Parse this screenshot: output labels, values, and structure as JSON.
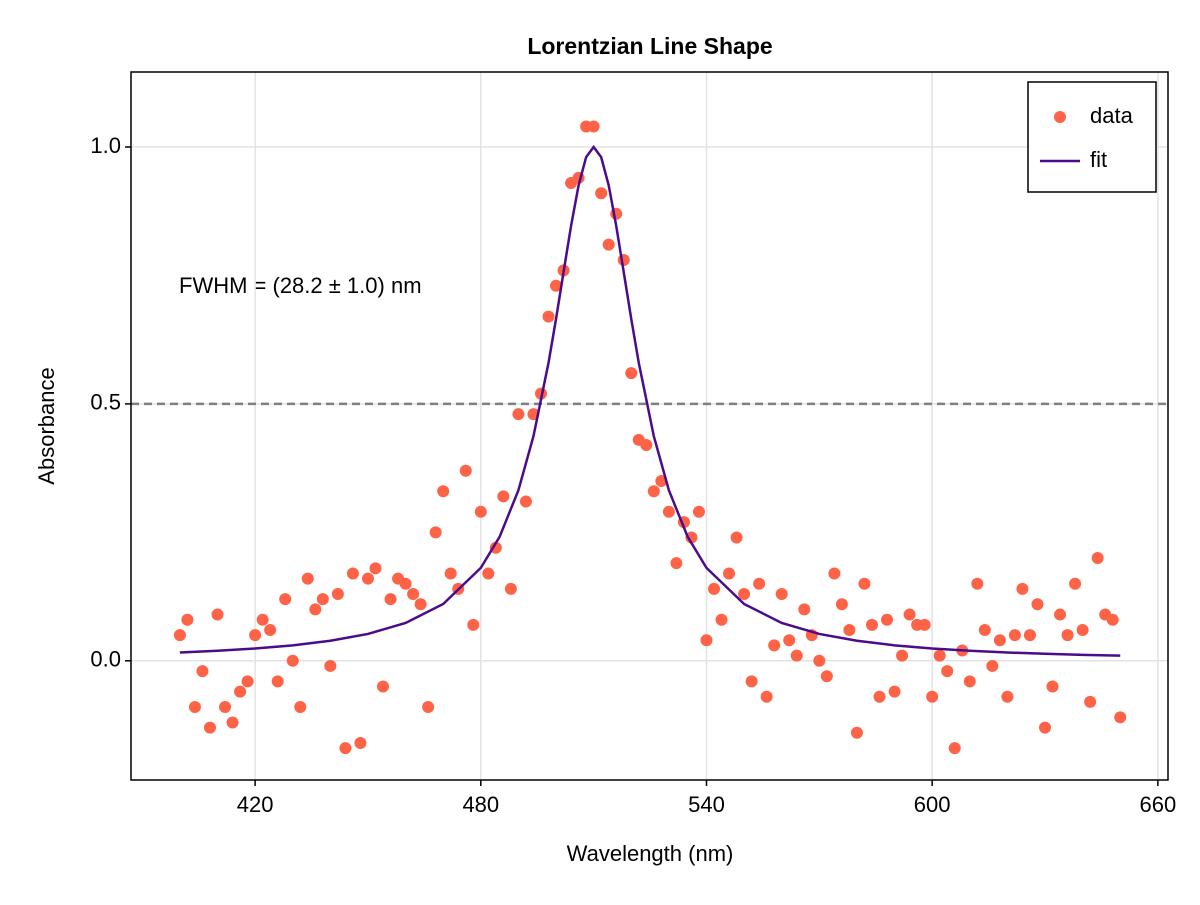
{
  "chart_data": {
    "type": "scatter",
    "title": "Lorentzian Line Shape",
    "x_label": "Wavelength (nm)",
    "y_label": "Absorbance",
    "annotation": "FWHM = (28.2 ± 1.0) nm",
    "hline": 0.5,
    "grid": true,
    "legend": "top-right",
    "xlim": [
      387,
      662.7
    ],
    "ylim": [
      -0.232,
      1.146
    ],
    "xticks": [
      420,
      480,
      540,
      600,
      660
    ],
    "yticks": [
      {
        "value": 0,
        "label": "0.0"
      },
      {
        "value": 0.5,
        "label": "0.5"
      },
      {
        "value": 1,
        "label": "1.0"
      }
    ],
    "series": [
      {
        "name": "data",
        "type": "scatter",
        "color": "#ff6347",
        "x": [
          400,
          402,
          404,
          406,
          408,
          410,
          412,
          414,
          416,
          418,
          420,
          422,
          424,
          426,
          428,
          430,
          432,
          434,
          436,
          438,
          440,
          442,
          444,
          446,
          448,
          450,
          452,
          454,
          456,
          458,
          460,
          462,
          464,
          466,
          468,
          470,
          472,
          474,
          476,
          478,
          480,
          482,
          484,
          486,
          488,
          490,
          492,
          494,
          496,
          498,
          500,
          502,
          504,
          506,
          508,
          510,
          512,
          514,
          516,
          518,
          520,
          522,
          524,
          526,
          528,
          530,
          532,
          534,
          536,
          538,
          540,
          542,
          544,
          546,
          548,
          550,
          552,
          554,
          556,
          558,
          560,
          562,
          564,
          566,
          568,
          570,
          572,
          574,
          576,
          578,
          580,
          582,
          584,
          586,
          588,
          590,
          592,
          594,
          596,
          598,
          600,
          602,
          604,
          606,
          608,
          610,
          612,
          614,
          616,
          618,
          620,
          622,
          624,
          626,
          628,
          630,
          632,
          634,
          636,
          638,
          640,
          642,
          644,
          646,
          648,
          650
        ],
        "values": [
          0.05,
          0.08,
          -0.09,
          -0.02,
          -0.13,
          0.09,
          -0.09,
          -0.12,
          -0.06,
          -0.04,
          0.05,
          0.08,
          0.06,
          -0.04,
          0.12,
          0.0,
          -0.09,
          0.16,
          0.1,
          0.12,
          -0.01,
          0.13,
          -0.17,
          0.17,
          -0.16,
          0.16,
          0.18,
          -0.05,
          0.12,
          0.16,
          0.15,
          0.13,
          0.11,
          -0.09,
          0.25,
          0.33,
          0.17,
          0.14,
          0.37,
          0.07,
          0.29,
          0.17,
          0.22,
          0.32,
          0.14,
          0.48,
          0.31,
          0.48,
          0.52,
          0.67,
          0.73,
          0.76,
          0.93,
          0.94,
          1.04,
          1.04,
          0.91,
          0.81,
          0.87,
          0.78,
          0.56,
          0.43,
          0.42,
          0.33,
          0.35,
          0.29,
          0.19,
          0.27,
          0.24,
          0.29,
          0.04,
          0.14,
          0.08,
          0.17,
          0.24,
          0.13,
          -0.04,
          0.15,
          -0.07,
          0.03,
          0.13,
          0.04,
          0.01,
          0.1,
          0.05,
          0.0,
          -0.03,
          0.17,
          0.11,
          0.06,
          -0.14,
          0.15,
          0.07,
          -0.07,
          0.08,
          -0.06,
          0.01,
          0.09,
          0.07,
          0.07,
          -0.07,
          0.01,
          -0.02,
          -0.17,
          0.02,
          -0.04,
          0.15,
          0.06,
          -0.01,
          0.04,
          -0.07,
          0.05,
          0.14,
          0.05,
          0.11,
          -0.13,
          -0.05,
          0.09,
          0.05,
          0.15,
          0.06,
          -0.08,
          0.2,
          0.09,
          0.08,
          -0.11
        ]
      },
      {
        "name": "fit",
        "type": "line",
        "color": "#4b0c8c",
        "x": [
          400,
          410,
          420,
          430,
          440,
          450,
          460,
          470,
          480,
          485,
          490,
          494,
          498,
          500,
          502,
          504,
          506,
          508,
          510,
          512,
          514,
          516,
          518,
          520,
          522,
          526,
          530,
          535,
          540,
          550,
          560,
          570,
          580,
          590,
          600,
          610,
          620,
          630,
          640,
          650
        ],
        "values": [
          0.0162,
          0.0195,
          0.0239,
          0.0301,
          0.039,
          0.0523,
          0.0737,
          0.1105,
          0.1809,
          0.2413,
          0.332,
          0.4371,
          0.5799,
          0.6653,
          0.7565,
          0.8467,
          0.9255,
          0.9803,
          1.0,
          0.9803,
          0.9255,
          0.8467,
          0.7565,
          0.6653,
          0.5799,
          0.4371,
          0.332,
          0.2413,
          0.1809,
          0.1105,
          0.0737,
          0.0523,
          0.039,
          0.0301,
          0.0239,
          0.0195,
          0.0162,
          0.0136,
          0.0116,
          0.01
        ]
      }
    ]
  }
}
